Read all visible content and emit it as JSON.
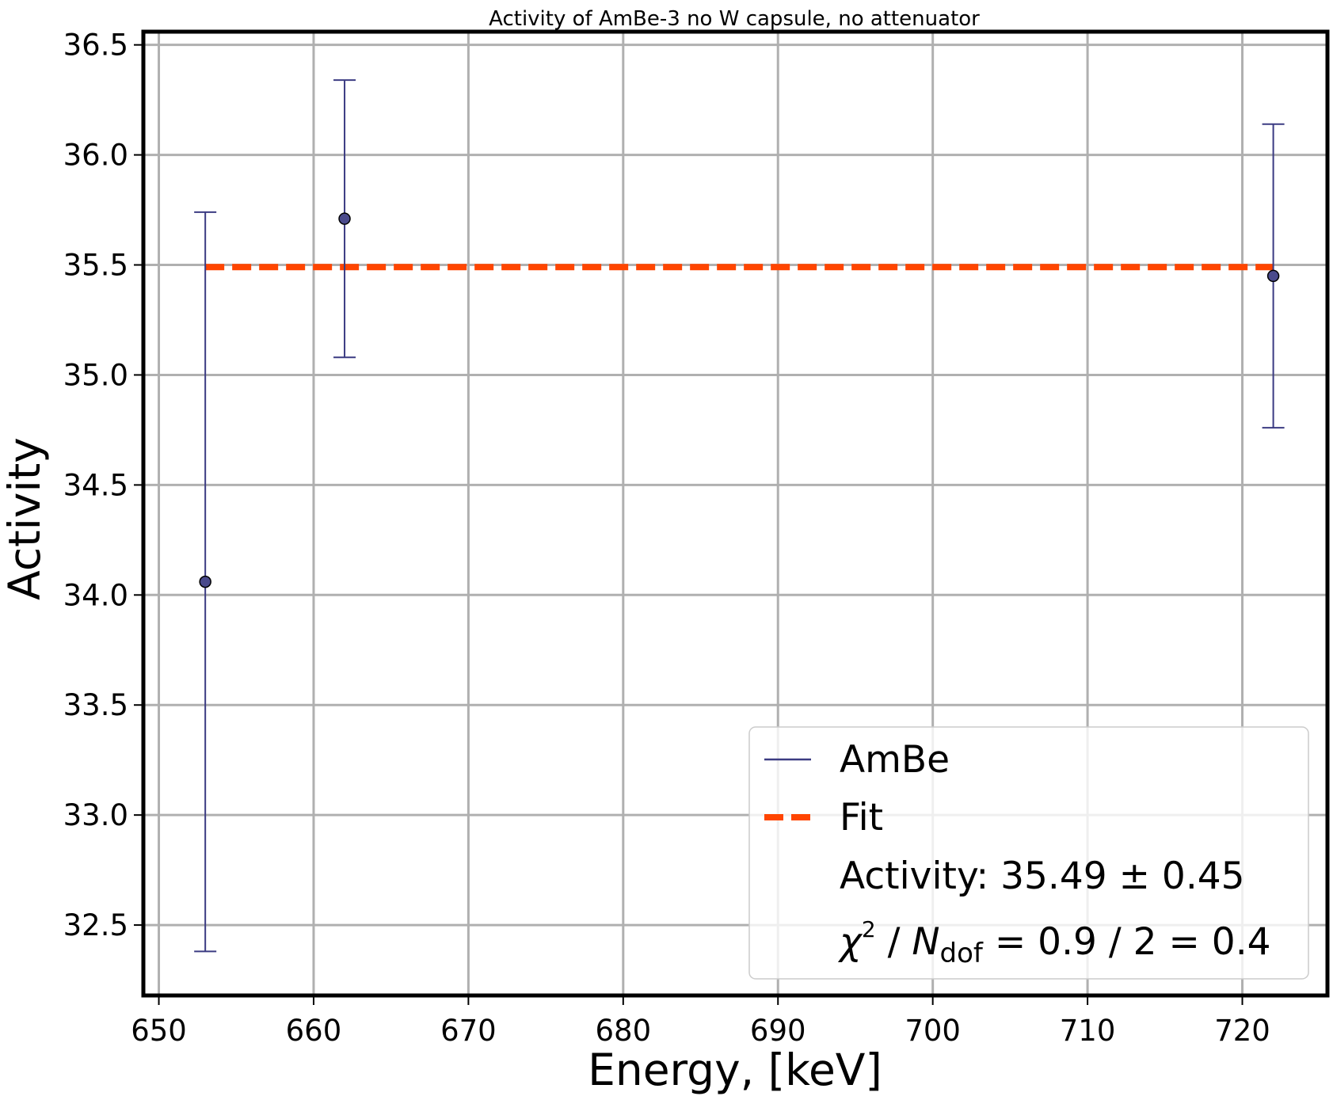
{
  "chart_data": {
    "type": "scatter",
    "title": "Activity of AmBe-3 no W capsule, no attenuator",
    "xlabel": "Energy, [keV]",
    "ylabel": "Activity",
    "xlim": [
      649,
      725.5
    ],
    "ylim": [
      32.18,
      36.56
    ],
    "x_ticks": [
      650,
      660,
      670,
      680,
      690,
      700,
      710,
      720
    ],
    "x_tick_labels": [
      "650",
      "660",
      "670",
      "680",
      "690",
      "700",
      "710",
      "720"
    ],
    "y_ticks": [
      32.5,
      33.0,
      33.5,
      34.0,
      34.5,
      35.0,
      35.5,
      36.0,
      36.5
    ],
    "y_tick_labels": [
      "32.5",
      "33.0",
      "33.5",
      "34.0",
      "34.5",
      "35.0",
      "35.5",
      "36.0",
      "36.5"
    ],
    "grid": true,
    "legend_position": "bottom-right",
    "series": [
      {
        "name": "AmBe",
        "color": "#3b3b82",
        "marker_fill": "#4a4a8c",
        "points": [
          {
            "x": 653,
            "y": 34.06,
            "err": 1.68
          },
          {
            "x": 662,
            "y": 35.71,
            "err": 0.63
          },
          {
            "x": 722,
            "y": 35.45,
            "err": 0.69
          }
        ]
      }
    ],
    "fit": {
      "name": "Fit",
      "color": "#ff4500",
      "value": 35.49,
      "x_range": [
        653,
        722
      ]
    },
    "legend": {
      "items": [
        {
          "label": "AmBe",
          "kind": "errorbar"
        },
        {
          "label": "Fit",
          "kind": "dashed"
        }
      ],
      "activity_text": "Activity: 35.49 ± 0.45",
      "chi_symbol": "χ",
      "chi_sup": "2",
      "chi_n": "N",
      "chi_sub": "dof",
      "chi_rest": " = 0.9 / 2 = 0.4",
      "chi_slash": " / "
    }
  }
}
